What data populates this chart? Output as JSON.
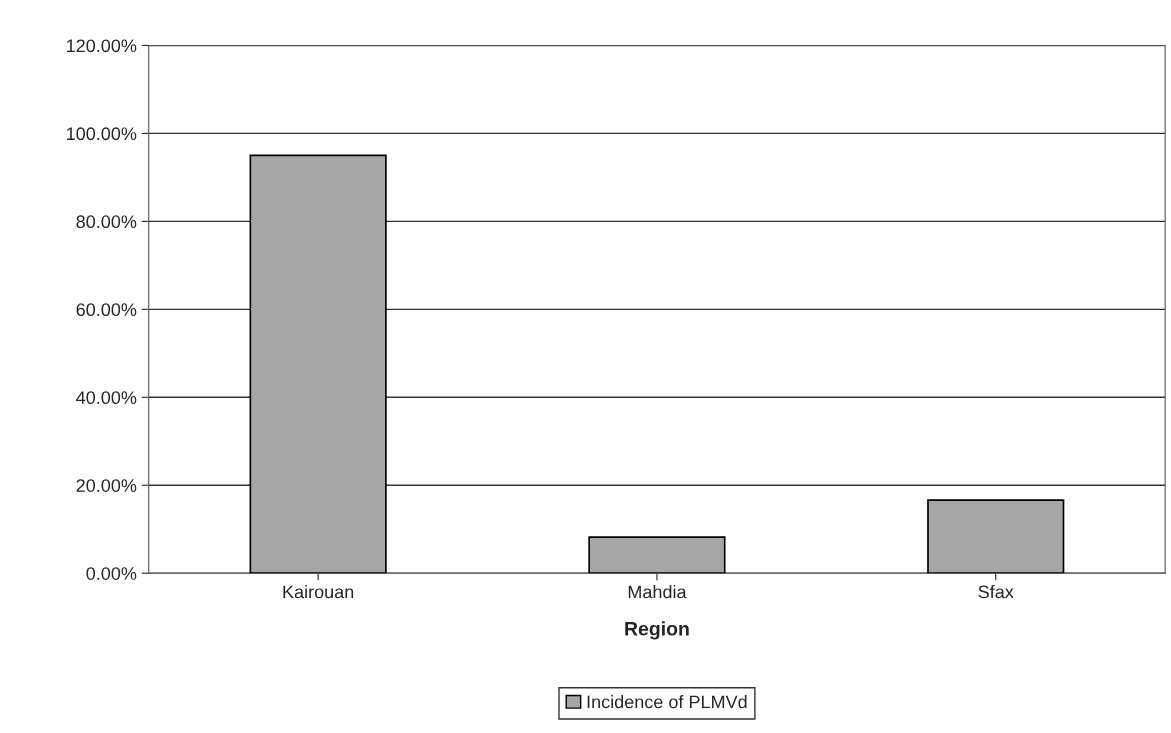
{
  "chart_data": {
    "type": "bar",
    "xlabel": "Region",
    "categories": [
      "Kairouan",
      "Mahdia",
      "Sfax"
    ],
    "series": [
      {
        "name": "Incidence of PLMVd",
        "color": "#a6a6a6",
        "values": [
          95.0,
          8.2,
          16.6
        ]
      }
    ],
    "ylim": [
      0,
      120
    ],
    "yticks": [
      {
        "value": 0,
        "label": "0.00%"
      },
      {
        "value": 20,
        "label": "20.00%"
      },
      {
        "value": 40,
        "label": "40.00%"
      },
      {
        "value": 60,
        "label": "60.00%"
      },
      {
        "value": 80,
        "label": "80.00%"
      },
      {
        "value": 100,
        "label": "100.00%"
      },
      {
        "value": 120,
        "label": "120.00%"
      }
    ],
    "grid": "y",
    "legend": "bottom"
  }
}
